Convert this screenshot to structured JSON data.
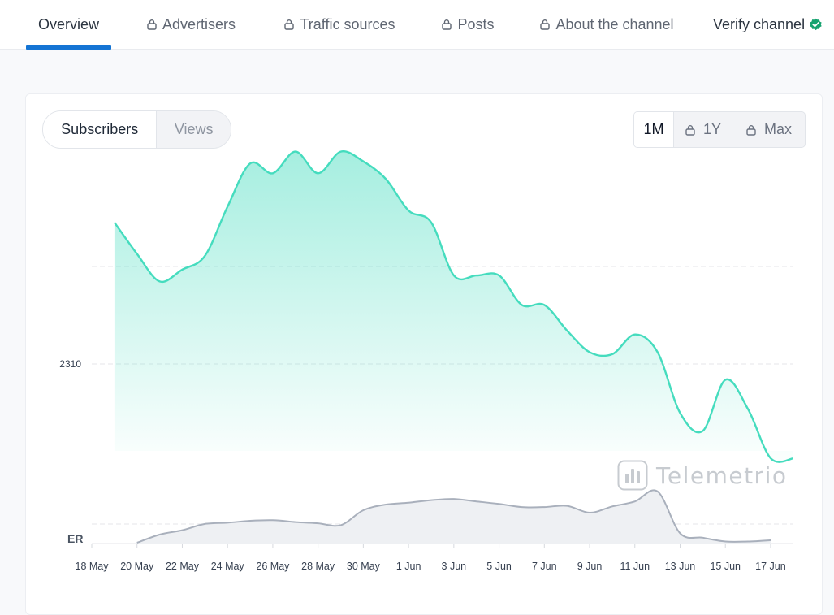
{
  "nav": {
    "tabs": [
      {
        "label": "Overview",
        "locked": false,
        "active": true
      },
      {
        "label": "Advertisers",
        "locked": true
      },
      {
        "label": "Traffic sources",
        "locked": true
      },
      {
        "label": "Posts",
        "locked": true
      },
      {
        "label": "About the channel",
        "locked": true
      },
      {
        "label": "Verify channel",
        "locked": false,
        "verified_icon": "check-badge-icon"
      }
    ],
    "accent_color": "#1474d4",
    "verify_color": "#16a36f"
  },
  "metric_toggle": {
    "options": [
      "Subscribers",
      "Views"
    ],
    "selected": "Subscribers"
  },
  "range_toggle": {
    "options": [
      {
        "label": "1M",
        "locked": false
      },
      {
        "label": "1Y",
        "locked": true
      },
      {
        "label": "Max",
        "locked": true
      }
    ],
    "selected": "1M"
  },
  "watermark": {
    "text": "Telemetrio"
  },
  "chart_data": [
    {
      "type": "area",
      "ylabel": "",
      "y_tick_labels": [
        "2310"
      ],
      "color": "#45dcbe",
      "grid": "dashed horizontal",
      "x_tick_labels": [
        "18 May",
        "20 May",
        "22 May",
        "24 May",
        "26 May",
        "28 May",
        "30 May",
        "1 Jun",
        "3 Jun",
        "5 Jun",
        "7 Jun",
        "9 Jun",
        "11 Jun",
        "13 Jun",
        "15 Jun",
        "17 Jun"
      ],
      "points": [
        [
          "19 May",
          2382
        ],
        [
          "20 May",
          2366
        ],
        [
          "21 May",
          2352
        ],
        [
          "22 May",
          2358
        ],
        [
          "23 May",
          2365
        ],
        [
          "24 May",
          2390
        ],
        [
          "25 May",
          2412
        ],
        [
          "26 May",
          2407
        ],
        [
          "27 May",
          2418
        ],
        [
          "28 May",
          2407
        ],
        [
          "29 May",
          2418
        ],
        [
          "30 May",
          2413
        ],
        [
          "31 May",
          2404
        ],
        [
          "1 Jun",
          2388
        ],
        [
          "2 Jun",
          2382
        ],
        [
          "3 Jun",
          2355
        ],
        [
          "4 Jun",
          2355
        ],
        [
          "5 Jun",
          2355
        ],
        [
          "6 Jun",
          2340
        ],
        [
          "7 Jun",
          2340
        ],
        [
          "8 Jun",
          2327
        ],
        [
          "9 Jun",
          2316
        ],
        [
          "10 Jun",
          2315
        ],
        [
          "11 Jun",
          2325
        ],
        [
          "12 Jun",
          2316
        ],
        [
          "13 Jun",
          2285
        ],
        [
          "14 Jun",
          2276
        ],
        [
          "15 Jun",
          2302
        ],
        [
          "16 Jun",
          2287
        ],
        [
          "17 Jun",
          2262
        ],
        [
          "18 Jun",
          2262
        ]
      ]
    },
    {
      "type": "area",
      "ylabel": "ER",
      "color": "#a9b0bc",
      "values_note": "",
      "points": [
        [
          "20 May",
          0.0
        ],
        [
          "21 May",
          0.13
        ],
        [
          "22 May",
          0.2
        ],
        [
          "23 May",
          0.3
        ],
        [
          "24 May",
          0.32
        ],
        [
          "25 May",
          0.35
        ],
        [
          "26 May",
          0.36
        ],
        [
          "27 May",
          0.33
        ],
        [
          "28 May",
          0.31
        ],
        [
          "29 May",
          0.28
        ],
        [
          "30 May",
          0.52
        ],
        [
          "31 May",
          0.61
        ],
        [
          "1 Jun",
          0.64
        ],
        [
          "2 Jun",
          0.68
        ],
        [
          "3 Jun",
          0.7
        ],
        [
          "4 Jun",
          0.66
        ],
        [
          "5 Jun",
          0.62
        ],
        [
          "6 Jun",
          0.57
        ],
        [
          "7 Jun",
          0.57
        ],
        [
          "8 Jun",
          0.59
        ],
        [
          "9 Jun",
          0.48
        ],
        [
          "10 Jun",
          0.58
        ],
        [
          "11 Jun",
          0.66
        ],
        [
          "12 Jun",
          0.82
        ],
        [
          "13 Jun",
          0.15
        ],
        [
          "14 Jun",
          0.08
        ],
        [
          "15 Jun",
          0.02
        ],
        [
          "16 Jun",
          0.02
        ],
        [
          "17 Jun",
          0.04
        ]
      ]
    }
  ]
}
